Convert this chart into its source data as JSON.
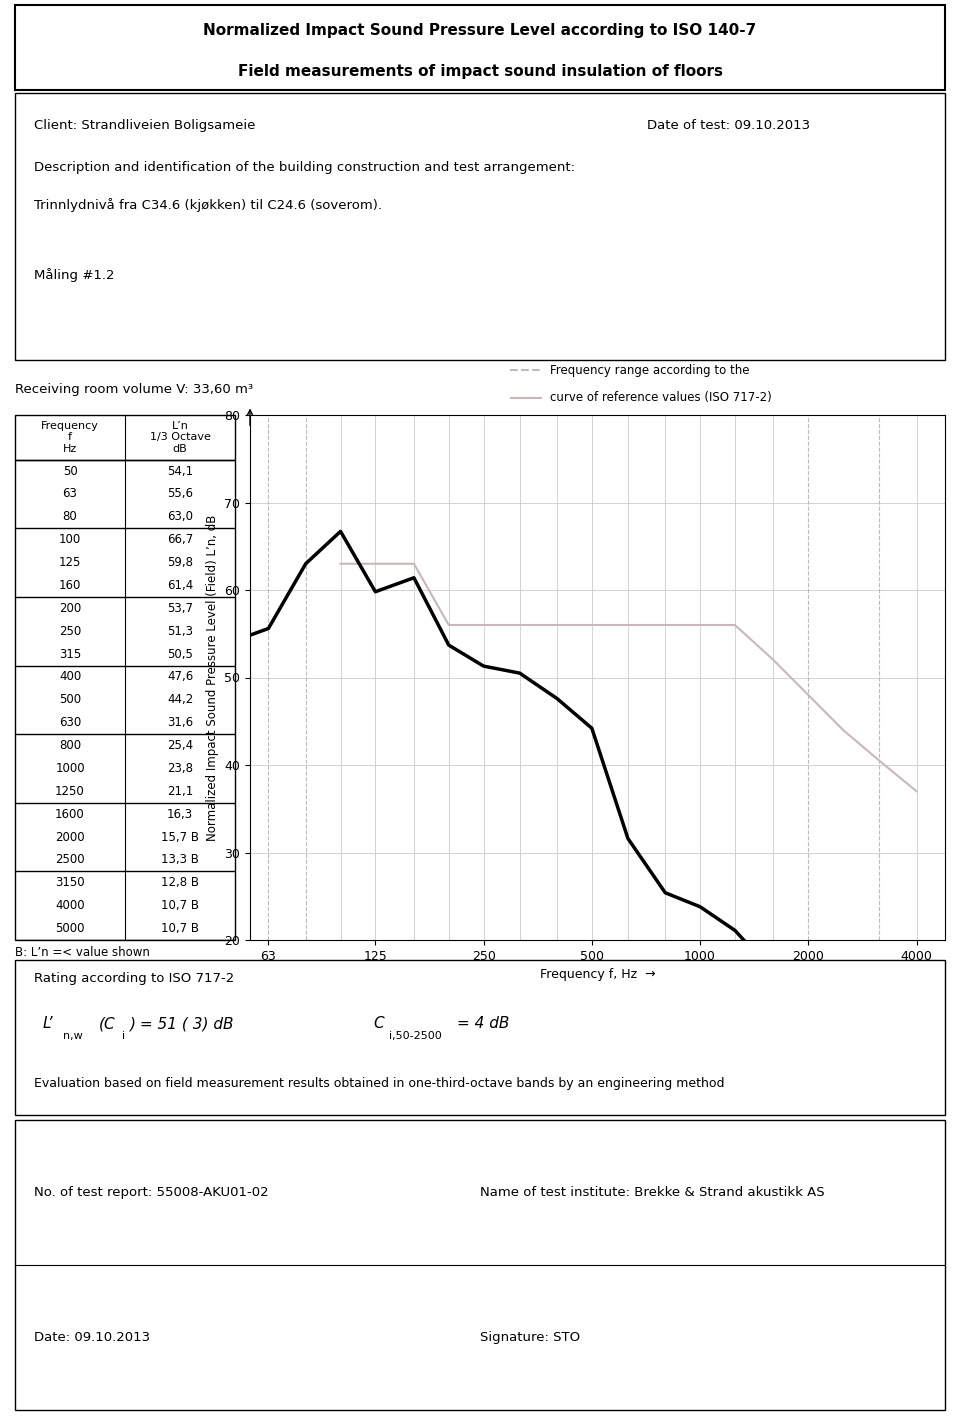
{
  "title1": "Normalized Impact Sound Pressure Level according to ISO 140-7",
  "title2": "Field measurements of impact sound insulation of floors",
  "client": "Client: Strandliveien Boligsameie",
  "date_of_test": "Date of test: 09.10.2013",
  "description_label": "Description and identification of the building construction and test arrangement:",
  "description_text": "Trinnlydnivå fra C34.6 (kjøkken) til C24.6 (soverom).",
  "maling": "Måling #1.2",
  "receiving_room": "Receiving room volume V: 33,60 m³",
  "frequencies": [
    50,
    63,
    80,
    100,
    125,
    160,
    200,
    250,
    315,
    400,
    500,
    630,
    800,
    1000,
    1250,
    1600,
    2000,
    2500,
    3150,
    4000,
    5000
  ],
  "ln_values": [
    54.1,
    55.6,
    63.0,
    66.7,
    59.8,
    61.4,
    53.7,
    51.3,
    50.5,
    47.6,
    44.2,
    31.6,
    25.4,
    23.8,
    21.1,
    16.3,
    15.7,
    13.3,
    12.8,
    10.7,
    10.7
  ],
  "ln_labels": [
    "54,1",
    "55,6",
    "63,0",
    "66,7",
    "59,8",
    "61,4",
    "53,7",
    "51,3",
    "50,5",
    "47,6",
    "44,2",
    "31,6",
    "25,4",
    "23,8",
    "21,1",
    "16,3",
    "15,7 B",
    "13,3 B",
    "12,8 B",
    "10,7 B",
    "10,7 B"
  ],
  "freq_display": [
    "50",
    "63",
    "80",
    "100",
    "125",
    "160",
    "200",
    "250",
    "315",
    "400",
    "500",
    "630",
    "800",
    "1000",
    "1250",
    "1600",
    "2000",
    "2500",
    "3150",
    "4000",
    "5000"
  ],
  "b_note": "B: L’n =< value shown",
  "ref_frequencies": [
    100,
    125,
    160,
    200,
    250,
    315,
    400,
    500,
    630,
    800,
    1000,
    1250,
    1600,
    2000,
    2500,
    3150,
    4000
  ],
  "ref_values": [
    63.0,
    63.0,
    63.0,
    56.0,
    56.0,
    56.0,
    56.0,
    56.0,
    56.0,
    56.0,
    56.0,
    56.0,
    52.0,
    48.0,
    44.0,
    40.5,
    37.0
  ],
  "ylabel": "Normalized Impact Sound Pressure Level (Field) L’n, dB",
  "xlabel": "Frequency f, Hz",
  "ylim": [
    20,
    80
  ],
  "yticks": [
    20,
    30,
    40,
    50,
    60,
    70,
    80
  ],
  "xtick_labels": [
    "63",
    "125",
    "250",
    "500",
    "1000",
    "2000",
    "4000"
  ],
  "legend_freq_range": "Frequency range according to the",
  "legend_ref_curve": "curve of reference values (ISO 717-2)",
  "ref_line_color": "#c8b8b8",
  "dashed_color": "#bbbbbb",
  "grid_color": "#cccccc",
  "rating_title": "Rating according to ISO 717-2",
  "rating_eval": "Evaluation based on field measurement results obtained in one-third-octave bands by an engineering method",
  "footer_left1": "No. of test report: 55008-AKU01-02",
  "footer_left2": "Date: 09.10.2013",
  "footer_right1": "Name of test institute: Brekke & Strand akustikk AS",
  "footer_right2": "Signature: STO",
  "group_boundaries": [
    0,
    3,
    6,
    9,
    12,
    15,
    18,
    21
  ]
}
